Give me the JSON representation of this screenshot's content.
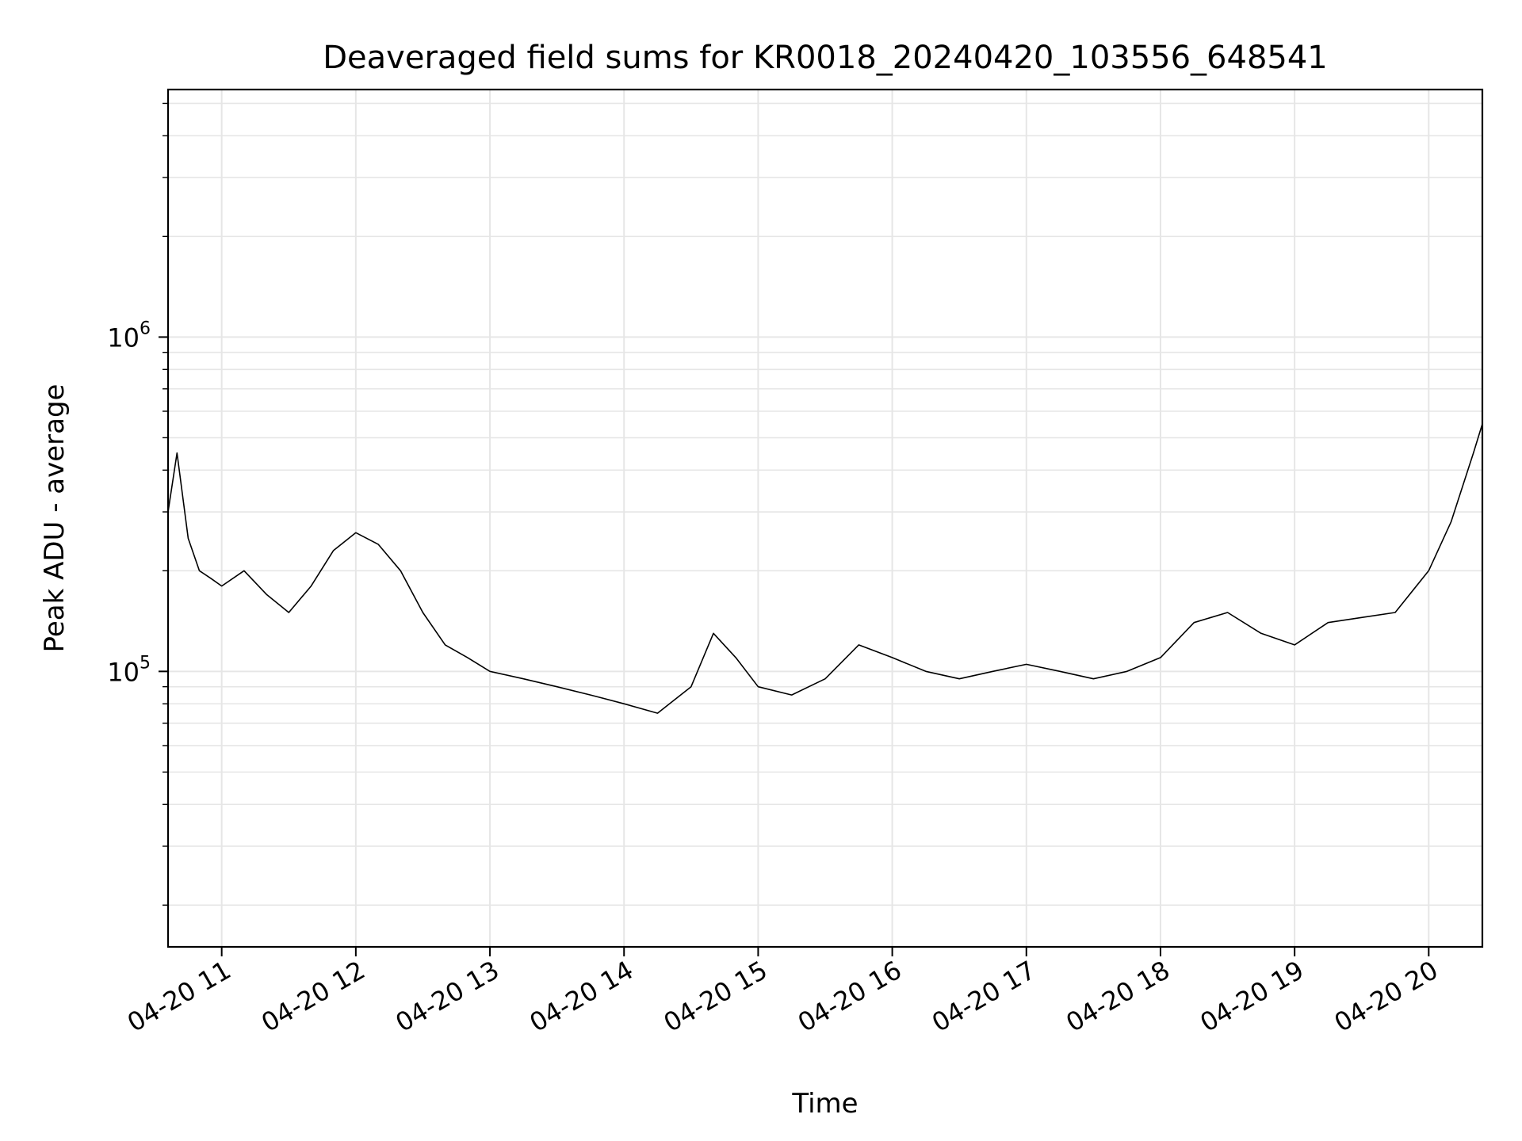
{
  "chart_data": {
    "type": "line",
    "title": "Deaveraged field sums for KR0018_20240420_103556_648541",
    "xlabel": "Time",
    "ylabel": "Peak ADU - average",
    "yscale": "log",
    "xlim": [
      "2024-04-20 10:36",
      "2024-04-20 20:24"
    ],
    "ylim": [
      15000,
      5500000
    ],
    "grid": true,
    "color": "#000000",
    "x_ticks": [
      {
        "t": "2024-04-20 11:00",
        "label": "04-20 11"
      },
      {
        "t": "2024-04-20 12:00",
        "label": "04-20 12"
      },
      {
        "t": "2024-04-20 13:00",
        "label": "04-20 13"
      },
      {
        "t": "2024-04-20 14:00",
        "label": "04-20 14"
      },
      {
        "t": "2024-04-20 15:00",
        "label": "04-20 15"
      },
      {
        "t": "2024-04-20 16:00",
        "label": "04-20 16"
      },
      {
        "t": "2024-04-20 17:00",
        "label": "04-20 17"
      },
      {
        "t": "2024-04-20 18:00",
        "label": "04-20 18"
      },
      {
        "t": "2024-04-20 19:00",
        "label": "04-20 19"
      },
      {
        "t": "2024-04-20 20:00",
        "label": "04-20 20"
      }
    ],
    "y_ticks": [
      {
        "value": 100000,
        "base": "10",
        "exp": "5"
      },
      {
        "value": 1000000,
        "base": "10",
        "exp": "6"
      }
    ],
    "series": [
      {
        "x": [
          "2024-04-20 10:36",
          "2024-04-20 10:40",
          "2024-04-20 10:45",
          "2024-04-20 10:50",
          "2024-04-20 10:55",
          "2024-04-20 11:00",
          "2024-04-20 11:10",
          "2024-04-20 11:20",
          "2024-04-20 11:30",
          "2024-04-20 11:40",
          "2024-04-20 11:50",
          "2024-04-20 12:00",
          "2024-04-20 12:10",
          "2024-04-20 12:20",
          "2024-04-20 12:30",
          "2024-04-20 12:40",
          "2024-04-20 12:50",
          "2024-04-20 13:00",
          "2024-04-20 13:15",
          "2024-04-20 13:30",
          "2024-04-20 13:45",
          "2024-04-20 14:00",
          "2024-04-20 14:15",
          "2024-04-20 14:30",
          "2024-04-20 14:40",
          "2024-04-20 14:50",
          "2024-04-20 15:00",
          "2024-04-20 15:15",
          "2024-04-20 15:30",
          "2024-04-20 15:45",
          "2024-04-20 16:00",
          "2024-04-20 16:15",
          "2024-04-20 16:30",
          "2024-04-20 16:45",
          "2024-04-20 17:00",
          "2024-04-20 17:15",
          "2024-04-20 17:30",
          "2024-04-20 17:45",
          "2024-04-20 18:00",
          "2024-04-20 18:15",
          "2024-04-20 18:30",
          "2024-04-20 18:45",
          "2024-04-20 19:00",
          "2024-04-20 19:15",
          "2024-04-20 19:30",
          "2024-04-20 19:45",
          "2024-04-20 20:00",
          "2024-04-20 20:10",
          "2024-04-20 20:20",
          "2024-04-20 20:24"
        ],
        "y": [
          300000,
          450000,
          250000,
          200000,
          190000,
          180000,
          200000,
          170000,
          150000,
          180000,
          230000,
          260000,
          240000,
          200000,
          150000,
          120000,
          110000,
          100000,
          95000,
          90000,
          85000,
          80000,
          75000,
          90000,
          130000,
          110000,
          90000,
          85000,
          95000,
          120000,
          110000,
          100000,
          95000,
          100000,
          105000,
          100000,
          95000,
          100000,
          110000,
          140000,
          150000,
          130000,
          120000,
          140000,
          145000,
          150000,
          200000,
          280000,
          450000,
          550000
        ]
      }
    ]
  }
}
